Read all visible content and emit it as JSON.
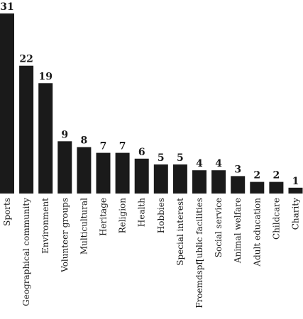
{
  "chart_data": {
    "type": "bar",
    "title": "",
    "xlabel": "",
    "ylabel": "",
    "ylim": [
      0,
      31
    ],
    "grid": false,
    "legend": "none",
    "bar_color": "#1a1a1a",
    "categories": [
      "Sports",
      "Geographical community",
      "Environment",
      "Volunteer groups",
      "Multicultural",
      "Heritage",
      "Religion",
      "Health",
      "Hobbies",
      "Special interest",
      "Froemdspf[ublic facilities",
      "Social service",
      "Animal welfare",
      "Adult education",
      "Childcare",
      "Charity"
    ],
    "values": [
      31,
      22,
      19,
      9,
      8,
      7,
      7,
      6,
      5,
      5,
      4,
      4,
      3,
      2,
      2,
      1
    ]
  }
}
